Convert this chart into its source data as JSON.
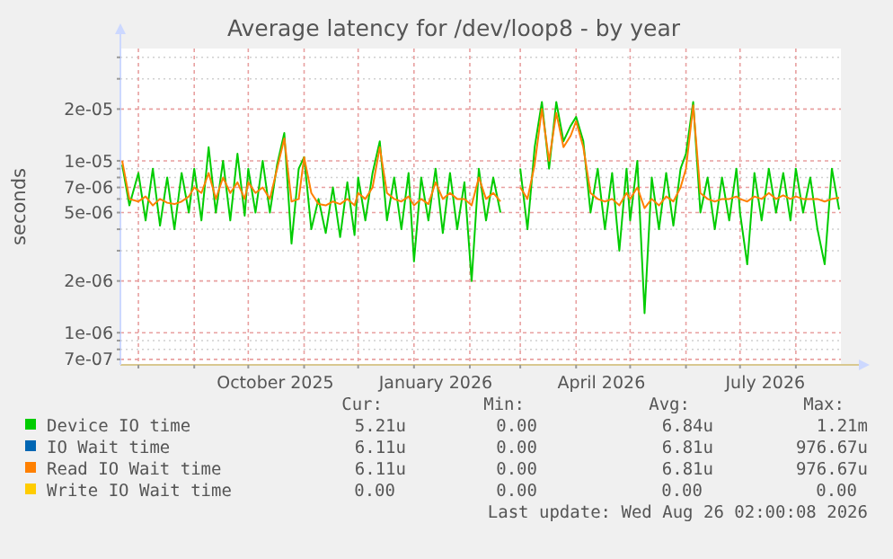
{
  "chart_data": {
    "type": "line",
    "title": "Average latency for /dev/loop8 - by year",
    "ylabel": "seconds",
    "x": [
      "2025-07-23",
      "2025-07-27",
      "2025-08-01",
      "2025-08-05",
      "2025-08-09",
      "2025-08-13",
      "2025-08-17",
      "2025-08-21",
      "2025-08-25",
      "2025-08-29",
      "2025-09-01",
      "2025-09-05",
      "2025-09-09",
      "2025-09-13",
      "2025-09-17",
      "2025-09-21",
      "2025-09-25",
      "2025-09-29",
      "2025-10-01",
      "2025-10-05",
      "2025-10-09",
      "2025-10-13",
      "2025-10-17",
      "2025-10-21",
      "2025-10-25",
      "2025-10-29",
      "2025-11-01",
      "2025-11-05",
      "2025-11-09",
      "2025-11-13",
      "2025-11-17",
      "2025-11-21",
      "2025-11-25",
      "2025-11-29",
      "2025-12-01",
      "2025-12-05",
      "2025-12-09",
      "2025-12-13",
      "2025-12-17",
      "2025-12-21",
      "2025-12-25",
      "2025-12-29",
      "2026-01-01",
      "2026-01-05",
      "2026-01-09",
      "2026-01-13",
      "2026-01-17",
      "2026-01-21",
      "2026-01-25",
      "2026-01-29",
      "2026-02-02",
      "2026-02-06",
      "2026-02-10",
      "2026-02-14",
      "2026-02-18",
      "2026-02-22",
      "2026-02-26",
      "2026-03-01",
      "2026-03-05",
      "2026-03-09",
      "2026-03-13",
      "2026-03-17",
      "2026-03-21",
      "2026-03-25",
      "2026-03-29",
      "2026-04-01",
      "2026-04-05",
      "2026-04-09",
      "2026-04-13",
      "2026-04-17",
      "2026-04-21",
      "2026-04-25",
      "2026-04-29",
      "2026-05-01",
      "2026-05-05",
      "2026-05-09",
      "2026-05-13",
      "2026-05-17",
      "2026-05-21",
      "2026-05-25",
      "2026-05-29",
      "2026-06-01",
      "2026-06-05",
      "2026-06-09",
      "2026-06-13",
      "2026-06-17",
      "2026-06-21",
      "2026-06-25",
      "2026-06-29",
      "2026-07-01",
      "2026-07-05",
      "2026-07-09",
      "2026-07-13",
      "2026-07-17",
      "2026-07-21",
      "2026-07-25",
      "2026-07-29",
      "2026-08-01",
      "2026-08-05",
      "2026-08-09",
      "2026-08-13",
      "2026-08-17",
      "2026-08-21",
      "2026-08-25"
    ],
    "series": [
      {
        "name": "Device IO time",
        "color": "#00cc00",
        "values": [
          9.5e-06,
          5.5e-06,
          8.5e-06,
          4.5e-06,
          9e-06,
          4.2e-06,
          8e-06,
          4e-06,
          8.5e-06,
          5e-06,
          9e-06,
          4.5e-06,
          1.2e-05,
          5e-06,
          1e-05,
          4.5e-06,
          1.1e-05,
          4.8e-06,
          9e-06,
          5e-06,
          1e-05,
          5e-06,
          9.5e-06,
          1.45e-05,
          3.3e-06,
          9e-06,
          1.05e-05,
          4e-06,
          6e-06,
          3.8e-06,
          7e-06,
          3.6e-06,
          7.5e-06,
          3.7e-06,
          8e-06,
          4.5e-06,
          8.5e-06,
          1.3e-05,
          4.5e-06,
          8e-06,
          4e-06,
          8.5e-06,
          2.6e-06,
          8e-06,
          4.5e-06,
          9e-06,
          3.8e-06,
          8.5e-06,
          4e-06,
          7.5e-06,
          2e-06,
          9e-06,
          4.5e-06,
          8e-06,
          5e-06,
          null,
          null,
          9e-06,
          4e-06,
          1.2e-05,
          2.2e-05,
          9e-06,
          2.2e-05,
          1.3e-05,
          1.6e-05,
          1.8e-05,
          1.3e-05,
          5e-06,
          9e-06,
          4e-06,
          8.5e-06,
          3e-06,
          9e-06,
          4.5e-06,
          1e-05,
          1.3e-06,
          8e-06,
          4e-06,
          8.5e-06,
          4.2e-06,
          9e-06,
          1.1e-05,
          2.2e-05,
          5e-06,
          8e-06,
          4e-06,
          8e-06,
          4.5e-06,
          9e-06,
          5e-06,
          2.5e-06,
          8.5e-06,
          4.5e-06,
          9e-06,
          5e-06,
          8.5e-06,
          4.5e-06,
          9e-06,
          5e-06,
          8e-06,
          4e-06,
          2.5e-06,
          9e-06,
          5.2e-06
        ]
      },
      {
        "name": "IO Wait time",
        "color": "#0066b3",
        "values": [
          null,
          null,
          null,
          null,
          null,
          null,
          null,
          null,
          null,
          null,
          null,
          null,
          null,
          null,
          null,
          null,
          null,
          null,
          null,
          null,
          null,
          null,
          null,
          null,
          null,
          null,
          null,
          null,
          null,
          null,
          null,
          null,
          null,
          null,
          null,
          null,
          null,
          null,
          null,
          null,
          null,
          null,
          null,
          null,
          null,
          null,
          null,
          null,
          null,
          null,
          null,
          null,
          null,
          null,
          null,
          null,
          null,
          null,
          null,
          null,
          null,
          null,
          null,
          null,
          null,
          null,
          null,
          null,
          null,
          null,
          null,
          null,
          null,
          null,
          null,
          null,
          null,
          null,
          null,
          null,
          null,
          null,
          null,
          null,
          null,
          null,
          null,
          null,
          null,
          null,
          null,
          null,
          null,
          null,
          null,
          null,
          null,
          null,
          null,
          null,
          null,
          null,
          null,
          null
        ]
      },
      {
        "name": "Read IO Wait time",
        "color": "#ff8000",
        "values": [
          1e-05,
          6e-06,
          5.8e-06,
          6.2e-06,
          5.5e-06,
          6e-06,
          5.7e-06,
          5.6e-06,
          5.8e-06,
          6.2e-06,
          7e-06,
          6.5e-06,
          8.5e-06,
          6e-06,
          8e-06,
          6.5e-06,
          7.5e-06,
          6e-06,
          7.5e-06,
          6.5e-06,
          7e-06,
          6e-06,
          9e-06,
          1.35e-05,
          5.8e-06,
          6e-06,
          1.05e-05,
          6.5e-06,
          5.6e-06,
          5.5e-06,
          5.8e-06,
          5.6e-06,
          6e-06,
          5.5e-06,
          6.5e-06,
          6e-06,
          7e-06,
          1.2e-05,
          6.5e-06,
          6e-06,
          5.8e-06,
          6.2e-06,
          5.5e-06,
          6e-06,
          5.6e-06,
          7.5e-06,
          6e-06,
          6.5e-06,
          6e-06,
          6e-06,
          5.5e-06,
          8e-06,
          6e-06,
          6.5e-06,
          5.8e-06,
          null,
          null,
          7e-06,
          6e-06,
          9.5e-06,
          2e-05,
          1e-05,
          1.9e-05,
          1.2e-05,
          1.4e-05,
          1.7e-05,
          1.2e-05,
          6.5e-06,
          6e-06,
          5.8e-06,
          6e-06,
          5.5e-06,
          6.5e-06,
          6e-06,
          7e-06,
          5.3e-06,
          6e-06,
          5.5e-06,
          6.2e-06,
          5.8e-06,
          7e-06,
          9e-06,
          2.1e-05,
          6.5e-06,
          6e-06,
          5.8e-06,
          6e-06,
          6e-06,
          6.2e-06,
          6e-06,
          5.8e-06,
          6.2e-06,
          6e-06,
          6.5e-06,
          6e-06,
          6.3e-06,
          6e-06,
          6.2e-06,
          6e-06,
          6e-06,
          6e-06,
          5.8e-06,
          6e-06,
          6.1e-06
        ]
      },
      {
        "name": "Write IO Wait time",
        "color": "#ffcc00",
        "values": [
          null,
          null,
          null,
          null,
          null,
          null,
          null,
          null,
          null,
          null,
          null,
          null,
          null,
          null,
          null,
          null,
          null,
          null,
          null,
          null,
          null,
          null,
          null,
          null,
          null,
          null,
          null,
          null,
          null,
          null,
          null,
          null,
          null,
          null,
          null,
          null,
          null,
          null,
          null,
          null,
          null,
          null,
          null,
          null,
          null,
          null,
          null,
          null,
          null,
          null,
          null,
          null,
          null,
          null,
          null,
          null,
          null,
          null,
          null,
          null,
          null,
          null,
          null,
          null,
          null,
          null,
          null,
          null,
          null,
          null,
          null,
          null,
          null,
          null,
          null,
          null,
          null,
          null,
          null,
          null,
          null,
          null,
          null,
          null,
          null,
          null,
          null,
          null,
          null,
          null,
          null,
          null,
          null,
          null,
          null,
          null,
          null,
          null,
          null,
          null,
          null,
          null,
          null,
          null
        ]
      }
    ],
    "xlim": [
      "2025-07-22",
      "2026-08-26"
    ],
    "xticks": [
      {
        "value": "2025-08-01",
        "label": null
      },
      {
        "value": "2025-09-01",
        "label": null
      },
      {
        "value": "2025-10-01",
        "label": null
      },
      {
        "value": "2025-10-16",
        "label": "October 2025"
      },
      {
        "value": "2025-11-01",
        "label": null
      },
      {
        "value": "2025-12-01",
        "label": null
      },
      {
        "value": "2026-01-01",
        "label": null
      },
      {
        "value": "2026-01-13",
        "label": "January 2026"
      },
      {
        "value": "2026-02-01",
        "label": null
      },
      {
        "value": "2026-03-01",
        "label": null
      },
      {
        "value": "2026-04-01",
        "label": null
      },
      {
        "value": "2026-04-15",
        "label": "April 2026"
      },
      {
        "value": "2026-05-01",
        "label": null
      },
      {
        "value": "2026-06-01",
        "label": null
      },
      {
        "value": "2026-07-01",
        "label": null
      },
      {
        "value": "2026-07-15",
        "label": "July 2026"
      },
      {
        "value": "2026-08-01",
        "label": null
      }
    ],
    "log": "y",
    "ylim": [
      6.5e-07,
      4.5e-05
    ],
    "yticks": [
      {
        "value": 7e-07,
        "label": "7e-07"
      },
      {
        "value": 8e-07,
        "label": null
      },
      {
        "value": 9e-07,
        "label": null
      },
      {
        "value": 1e-06,
        "label": "1e-06"
      },
      {
        "value": 2e-06,
        "label": "2e-06"
      },
      {
        "value": 3e-06,
        "label": null
      },
      {
        "value": 4e-06,
        "label": null
      },
      {
        "value": 5e-06,
        "label": "5e-06"
      },
      {
        "value": 6e-06,
        "label": null
      },
      {
        "value": 7e-06,
        "label": "7e-06"
      },
      {
        "value": 8e-06,
        "label": null
      },
      {
        "value": 9e-06,
        "label": null
      },
      {
        "value": 1e-05,
        "label": "1e-05"
      },
      {
        "value": 2e-05,
        "label": "2e-05"
      },
      {
        "value": 3e-05,
        "label": null
      },
      {
        "value": 4e-05,
        "label": null
      }
    ],
    "grid": true,
    "legend": "bottom",
    "annotations": [
      "Cur:",
      "Min:",
      "Avg:",
      "Max:",
      "5.21u",
      "0.00",
      "6.84u",
      "1.21m",
      "6.11u",
      "0.00",
      "6.81u",
      "976.67u",
      "6.11u",
      "0.00",
      "6.81u",
      "976.67u",
      "0.00",
      "0.00",
      "0.00",
      "0.00",
      "Last update: Wed Aug 26 02:00:08 2026"
    ]
  }
}
